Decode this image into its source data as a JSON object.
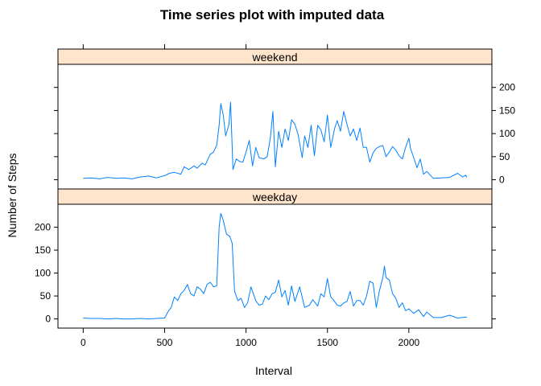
{
  "chart_data": {
    "type": "line",
    "title": "Time series plot with imputed data",
    "xlabel": "Interval",
    "ylabel": "Number of Steps",
    "xlim": [
      -155,
      2510
    ],
    "ylim": [
      -20,
      250
    ],
    "x_ticks": [
      0,
      500,
      1000,
      1500,
      2000
    ],
    "y_ticks": [
      0,
      50,
      100,
      150,
      200
    ],
    "grid": false,
    "layout": "two stacked panels, shared x axis",
    "strip_color": "#ffe5cc",
    "line_color": "#0080ff",
    "panels": [
      {
        "name": "weekend",
        "x": [
          0,
          50,
          100,
          150,
          200,
          250,
          300,
          350,
          400,
          450,
          500,
          530,
          560,
          600,
          620,
          650,
          680,
          700,
          730,
          750,
          780,
          800,
          820,
          835,
          845,
          860,
          875,
          895,
          905,
          920,
          940,
          960,
          980,
          1000,
          1020,
          1040,
          1060,
          1080,
          1110,
          1130,
          1150,
          1165,
          1180,
          1200,
          1220,
          1240,
          1260,
          1280,
          1300,
          1320,
          1345,
          1360,
          1380,
          1400,
          1420,
          1440,
          1460,
          1480,
          1500,
          1520,
          1545,
          1560,
          1580,
          1600,
          1620,
          1640,
          1660,
          1680,
          1700,
          1720,
          1740,
          1760,
          1780,
          1800,
          1820,
          1840,
          1860,
          1880,
          1900,
          1920,
          1940,
          1960,
          1980,
          2000,
          2010,
          2030,
          2050,
          2070,
          2090,
          2110,
          2150,
          2200,
          2250,
          2300,
          2330,
          2350,
          2355
        ],
        "values": [
          3,
          4,
          2,
          5,
          3,
          4,
          2,
          6,
          8,
          4,
          9,
          14,
          16,
          12,
          28,
          22,
          30,
          25,
          36,
          32,
          55,
          60,
          75,
          118,
          165,
          140,
          95,
          120,
          168,
          22,
          45,
          40,
          38,
          60,
          85,
          30,
          70,
          48,
          45,
          50,
          92,
          148,
          28,
          105,
          70,
          110,
          85,
          130,
          120,
          98,
          48,
          95,
          70,
          118,
          52,
          118,
          108,
          82,
          140,
          70,
          112,
          128,
          105,
          148,
          120,
          95,
          110,
          85,
          112,
          70,
          70,
          38,
          58,
          68,
          72,
          74,
          50,
          60,
          72,
          64,
          52,
          45,
          70,
          90,
          68,
          48,
          26,
          45,
          12,
          18,
          3,
          4,
          5,
          14,
          6,
          10,
          5
        ]
      },
      {
        "name": "weekday",
        "x": [
          0,
          50,
          100,
          150,
          200,
          250,
          300,
          350,
          400,
          450,
          500,
          520,
          540,
          560,
          580,
          600,
          620,
          640,
          660,
          680,
          700,
          720,
          740,
          760,
          780,
          800,
          820,
          835,
          845,
          860,
          880,
          900,
          915,
          930,
          950,
          970,
          990,
          1010,
          1030,
          1060,
          1080,
          1100,
          1120,
          1140,
          1160,
          1180,
          1200,
          1220,
          1240,
          1260,
          1280,
          1300,
          1330,
          1360,
          1390,
          1410,
          1440,
          1460,
          1480,
          1500,
          1520,
          1540,
          1560,
          1580,
          1600,
          1620,
          1640,
          1660,
          1680,
          1700,
          1720,
          1740,
          1760,
          1780,
          1800,
          1820,
          1840,
          1850,
          1860,
          1880,
          1900,
          1920,
          1940,
          1960,
          1980,
          2000,
          2030,
          2060,
          2090,
          2110,
          2150,
          2200,
          2250,
          2300,
          2350,
          2355
        ],
        "values": [
          2,
          1,
          1,
          0,
          1,
          0,
          0,
          1,
          0,
          1,
          2,
          15,
          25,
          48,
          40,
          55,
          62,
          75,
          55,
          50,
          70,
          65,
          55,
          75,
          80,
          70,
          72,
          200,
          230,
          215,
          185,
          180,
          165,
          60,
          40,
          45,
          25,
          35,
          70,
          40,
          30,
          32,
          50,
          42,
          55,
          58,
          85,
          48,
          62,
          30,
          72,
          38,
          70,
          25,
          30,
          42,
          28,
          55,
          48,
          88,
          48,
          40,
          30,
          28,
          35,
          38,
          60,
          28,
          40,
          40,
          30,
          50,
          82,
          78,
          25,
          62,
          90,
          115,
          90,
          85,
          55,
          45,
          25,
          35,
          18,
          22,
          12,
          20,
          5,
          15,
          3,
          3,
          8,
          2,
          4,
          3
        ]
      }
    ]
  }
}
